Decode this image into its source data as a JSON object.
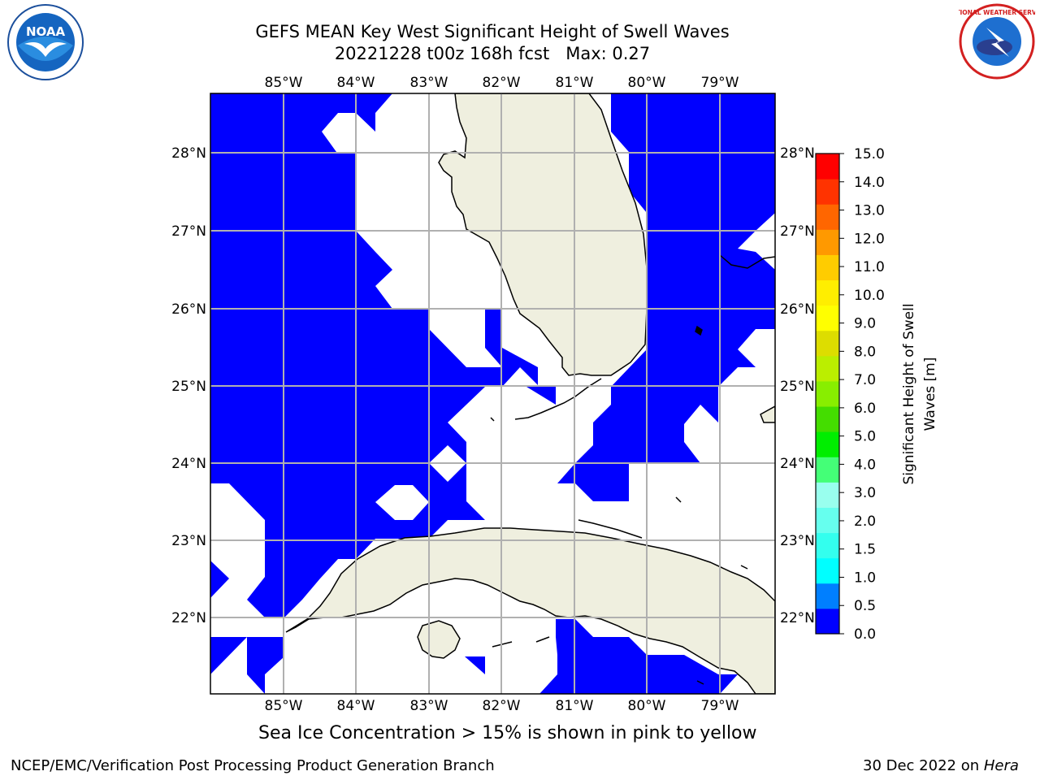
{
  "header": {
    "title_line1": "GEFS MEAN Key West Significant Height of Swell Waves",
    "title_line2": "20221228 t00z 168h fcst   Max: 0.27"
  },
  "map": {
    "land_color": "#efefdf",
    "water_fill_color": "#0000ff",
    "lon_ticks": [
      "85°W",
      "84°W",
      "83°W",
      "82°W",
      "81°W",
      "80°W",
      "79°W"
    ],
    "lat_ticks": [
      "22°N",
      "23°N",
      "24°N",
      "25°N",
      "26°N",
      "27°N",
      "28°N"
    ]
  },
  "colorbar": {
    "label_line1": "Significant Height of Swell",
    "label_line2": "Waves [m]",
    "ticks": [
      "0.0",
      "0.5",
      "1.0",
      "1.5",
      "2.0",
      "3.0",
      "4.0",
      "5.0",
      "6.0",
      "7.0",
      "8.0",
      "9.0",
      "10.0",
      "11.0",
      "12.0",
      "13.0",
      "14.0",
      "15.0"
    ],
    "colors": [
      "#0000ff",
      "#007fff",
      "#00ffff",
      "#33ffee",
      "#66ffee",
      "#99ffee",
      "#44ff77",
      "#00ee00",
      "#44dd00",
      "#88ee00",
      "#bbee00",
      "#dddd00",
      "#ffff00",
      "#ffee00",
      "#ffcc00",
      "#ff9900",
      "#ff6600",
      "#ff3300",
      "#ff0000"
    ]
  },
  "subtitle": "Sea Ice Concentration > 15% is shown in pink to yellow",
  "footer": {
    "left": "NCEP/EMC/Verification Post Processing Product Generation Branch",
    "right_date": "30 Dec 2022 on ",
    "right_machine": "Hera"
  },
  "logos": {
    "noaa_text": "NOAA",
    "nws_text": "NATIONAL WEATHER SERVICE"
  }
}
